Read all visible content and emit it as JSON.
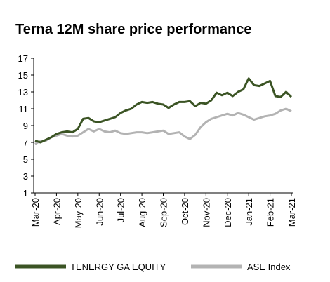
{
  "chart_data": {
    "type": "line",
    "title": "Terna 12M share price performance",
    "categories": [
      "Mar-20",
      null,
      null,
      null,
      "Apr-20",
      null,
      null,
      null,
      "May-20",
      null,
      null,
      null,
      "Jun-20",
      null,
      null,
      null,
      "Jul-20",
      null,
      null,
      null,
      "Aug-20",
      null,
      null,
      null,
      "Sep-20",
      null,
      null,
      null,
      "Oct-20",
      null,
      null,
      null,
      "Nov-20",
      null,
      null,
      null,
      "Dec-20",
      null,
      null,
      null,
      "Jan-21",
      null,
      null,
      null,
      "Feb-21",
      null,
      null,
      null,
      "Mar-21"
    ],
    "series": [
      {
        "name": "TENERGY GA EQUITY",
        "color": "#3b5424",
        "values": [
          7.2,
          7.0,
          7.3,
          7.6,
          8.0,
          8.2,
          8.3,
          8.2,
          8.6,
          9.8,
          9.9,
          9.5,
          9.4,
          9.6,
          9.8,
          10.0,
          10.5,
          10.8,
          11.0,
          11.5,
          11.8,
          11.7,
          11.8,
          11.6,
          11.5,
          11.1,
          11.5,
          11.8,
          11.8,
          11.9,
          11.3,
          11.7,
          11.6,
          12.0,
          12.9,
          12.6,
          12.9,
          12.5,
          13.0,
          13.3,
          14.6,
          13.8,
          13.7,
          14.0,
          14.3,
          12.5,
          12.4,
          13.0,
          12.4
        ]
      },
      {
        "name": "ASE Index",
        "color": "#b3b3b3",
        "values": [
          6.8,
          7.2,
          7.2,
          7.6,
          7.8,
          8.0,
          7.8,
          7.7,
          7.8,
          8.2,
          8.6,
          8.3,
          8.6,
          8.3,
          8.2,
          8.4,
          8.1,
          8.0,
          8.1,
          8.2,
          8.2,
          8.1,
          8.2,
          8.3,
          8.4,
          8.0,
          8.1,
          8.2,
          7.7,
          7.4,
          7.9,
          8.8,
          9.4,
          9.8,
          10.0,
          10.2,
          10.4,
          10.2,
          10.5,
          10.3,
          10.0,
          9.7,
          9.9,
          10.1,
          10.2,
          10.4,
          10.8,
          11.0,
          10.7
        ]
      }
    ],
    "ylim": [
      1,
      17
    ],
    "yticks": [
      1,
      3,
      5,
      7,
      9,
      11,
      13,
      15,
      17
    ],
    "legend": "bottom"
  }
}
